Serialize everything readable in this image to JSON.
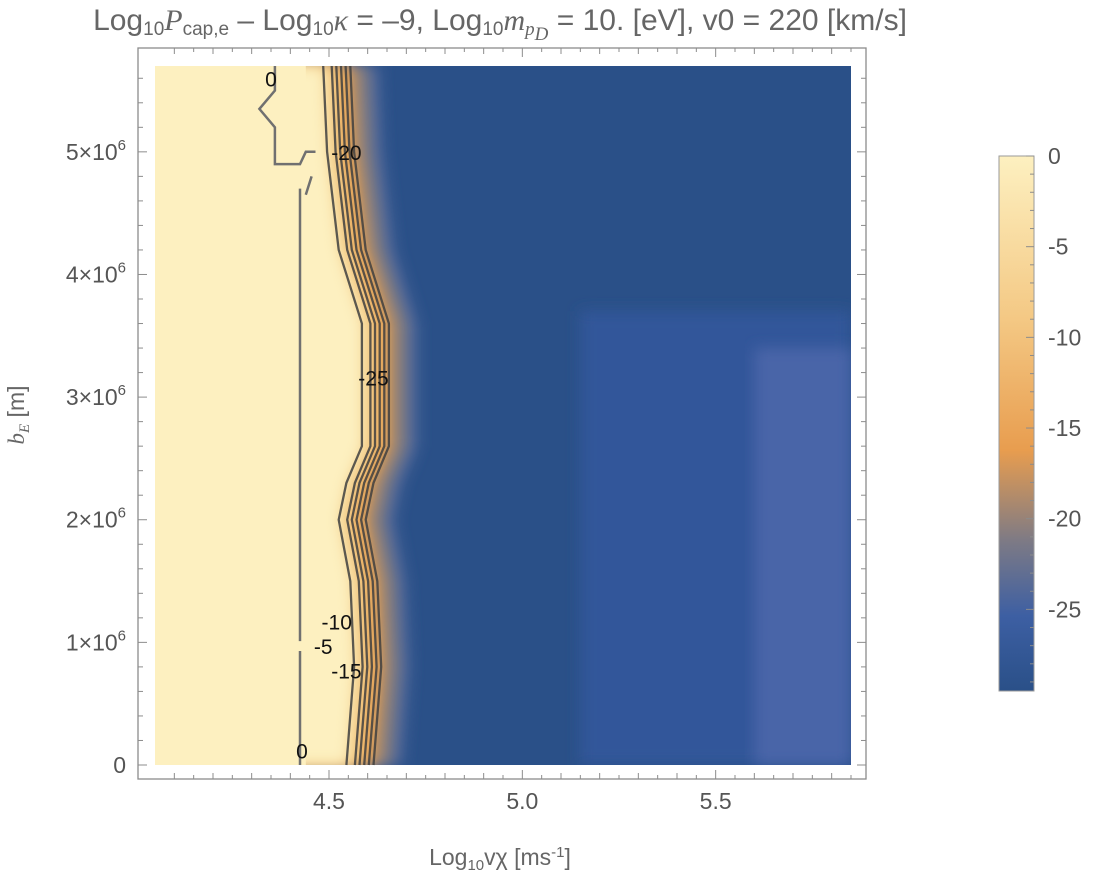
{
  "title": {
    "part1": "Log",
    "sub1": "10",
    "p": "P",
    "p_sub": "cap,e",
    "part2": " – Log",
    "sub2": "10",
    "kappa": "κ",
    "part3": " = –9, Log",
    "sub3": "10",
    "m": "m",
    "m_sub": "p",
    "m_subsub": "D",
    "part4": " = 10. [eV], v0 = 220 [km/s]"
  },
  "chart_data": {
    "type": "heatmap",
    "xlabel": "Log10vχ [ms-1]",
    "xlabel_parts": {
      "pre": "Log",
      "sub": "10",
      "mid": "vχ [ms",
      "sup": "-1",
      "post": "]"
    },
    "ylabel": "bE [m]",
    "ylabel_parts": {
      "b": "b",
      "sub": "E",
      "post": " [m]"
    },
    "xlim": [
      4.05,
      5.85
    ],
    "ylim": [
      0,
      5700000
    ],
    "x_ticks": [
      "4.5",
      "5.0",
      "5.5"
    ],
    "x_tick_values": [
      4.5,
      5.0,
      5.5
    ],
    "y_ticks": [
      {
        "value": 0,
        "label": "0"
      },
      {
        "value": 1000000,
        "mant": "1",
        "exp": "6"
      },
      {
        "value": 2000000,
        "mant": "2",
        "exp": "6"
      },
      {
        "value": 3000000,
        "mant": "3",
        "exp": "6"
      },
      {
        "value": 4000000,
        "mant": "4",
        "exp": "6"
      },
      {
        "value": 5000000,
        "mant": "5",
        "exp": "6"
      }
    ],
    "colorbar": {
      "range": [
        -29.5,
        0
      ],
      "ticks": [
        "0",
        "-5",
        "-10",
        "-15",
        "-20",
        "-25"
      ],
      "tick_values": [
        0,
        -5,
        -10,
        -15,
        -20,
        -25
      ]
    },
    "colormap": [
      "#2a5088",
      "#3c5da3",
      "#8c7e7b",
      "#e8a050",
      "#f2c983",
      "#fdf0c0"
    ],
    "contour_levels": [
      0,
      -5,
      -10,
      -15,
      -20,
      -25
    ],
    "contour_labels": [
      {
        "text": "0",
        "x": 4.35,
        "y": 5580000
      },
      {
        "text": "-20",
        "x": 4.545,
        "y": 4980000
      },
      {
        "text": "-25",
        "x": 4.615,
        "y": 3140000
      },
      {
        "text": "-10",
        "x": 4.52,
        "y": 1150000
      },
      {
        "text": "-5",
        "x": 4.485,
        "y": 950000
      },
      {
        "text": "-15",
        "x": 4.545,
        "y": 750000
      },
      {
        "text": "0",
        "x": 4.43,
        "y": 100000
      }
    ],
    "transition_edge": [
      [
        0,
        4.62
      ],
      [
        800000,
        4.64
      ],
      [
        1500000,
        4.63
      ],
      [
        2000000,
        4.6
      ],
      [
        2300000,
        4.62
      ],
      [
        2600000,
        4.66
      ],
      [
        3600000,
        4.66
      ],
      [
        4200000,
        4.6
      ],
      [
        5000000,
        4.57
      ],
      [
        5700000,
        4.56
      ]
    ],
    "grid": false
  }
}
